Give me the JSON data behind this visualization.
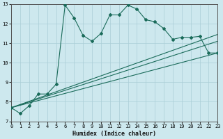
{
  "xlabel": "Humidex (Indice chaleur)",
  "xlim": [
    0,
    23
  ],
  "ylim": [
    7,
    13
  ],
  "yticks": [
    7,
    8,
    9,
    10,
    11,
    12,
    13
  ],
  "xticks": [
    0,
    1,
    2,
    3,
    4,
    5,
    6,
    7,
    8,
    9,
    10,
    11,
    12,
    13,
    14,
    15,
    16,
    17,
    18,
    19,
    20,
    21,
    22,
    23
  ],
  "bg_color": "#cde8ee",
  "grid_color": "#aacdd6",
  "line_color": "#1a6b5a",
  "main_x": [
    0,
    1,
    2,
    3,
    4,
    5,
    6,
    7,
    8,
    9,
    10,
    11,
    12,
    13,
    14,
    15,
    16,
    17,
    18,
    19,
    20,
    21,
    22,
    23
  ],
  "main_y": [
    7.7,
    7.4,
    7.8,
    8.4,
    8.4,
    8.9,
    12.95,
    12.3,
    11.4,
    11.1,
    11.5,
    12.45,
    12.45,
    12.95,
    12.75,
    12.2,
    12.1,
    11.75,
    11.2,
    11.3,
    11.3,
    11.35,
    10.5,
    10.5
  ],
  "fan_lines": [
    {
      "x": [
        0,
        23
      ],
      "y": [
        7.7,
        11.45
      ]
    },
    {
      "x": [
        0,
        23
      ],
      "y": [
        7.7,
        10.5
      ]
    },
    {
      "x": [
        0,
        23
      ],
      "y": [
        7.7,
        11.1
      ]
    }
  ]
}
